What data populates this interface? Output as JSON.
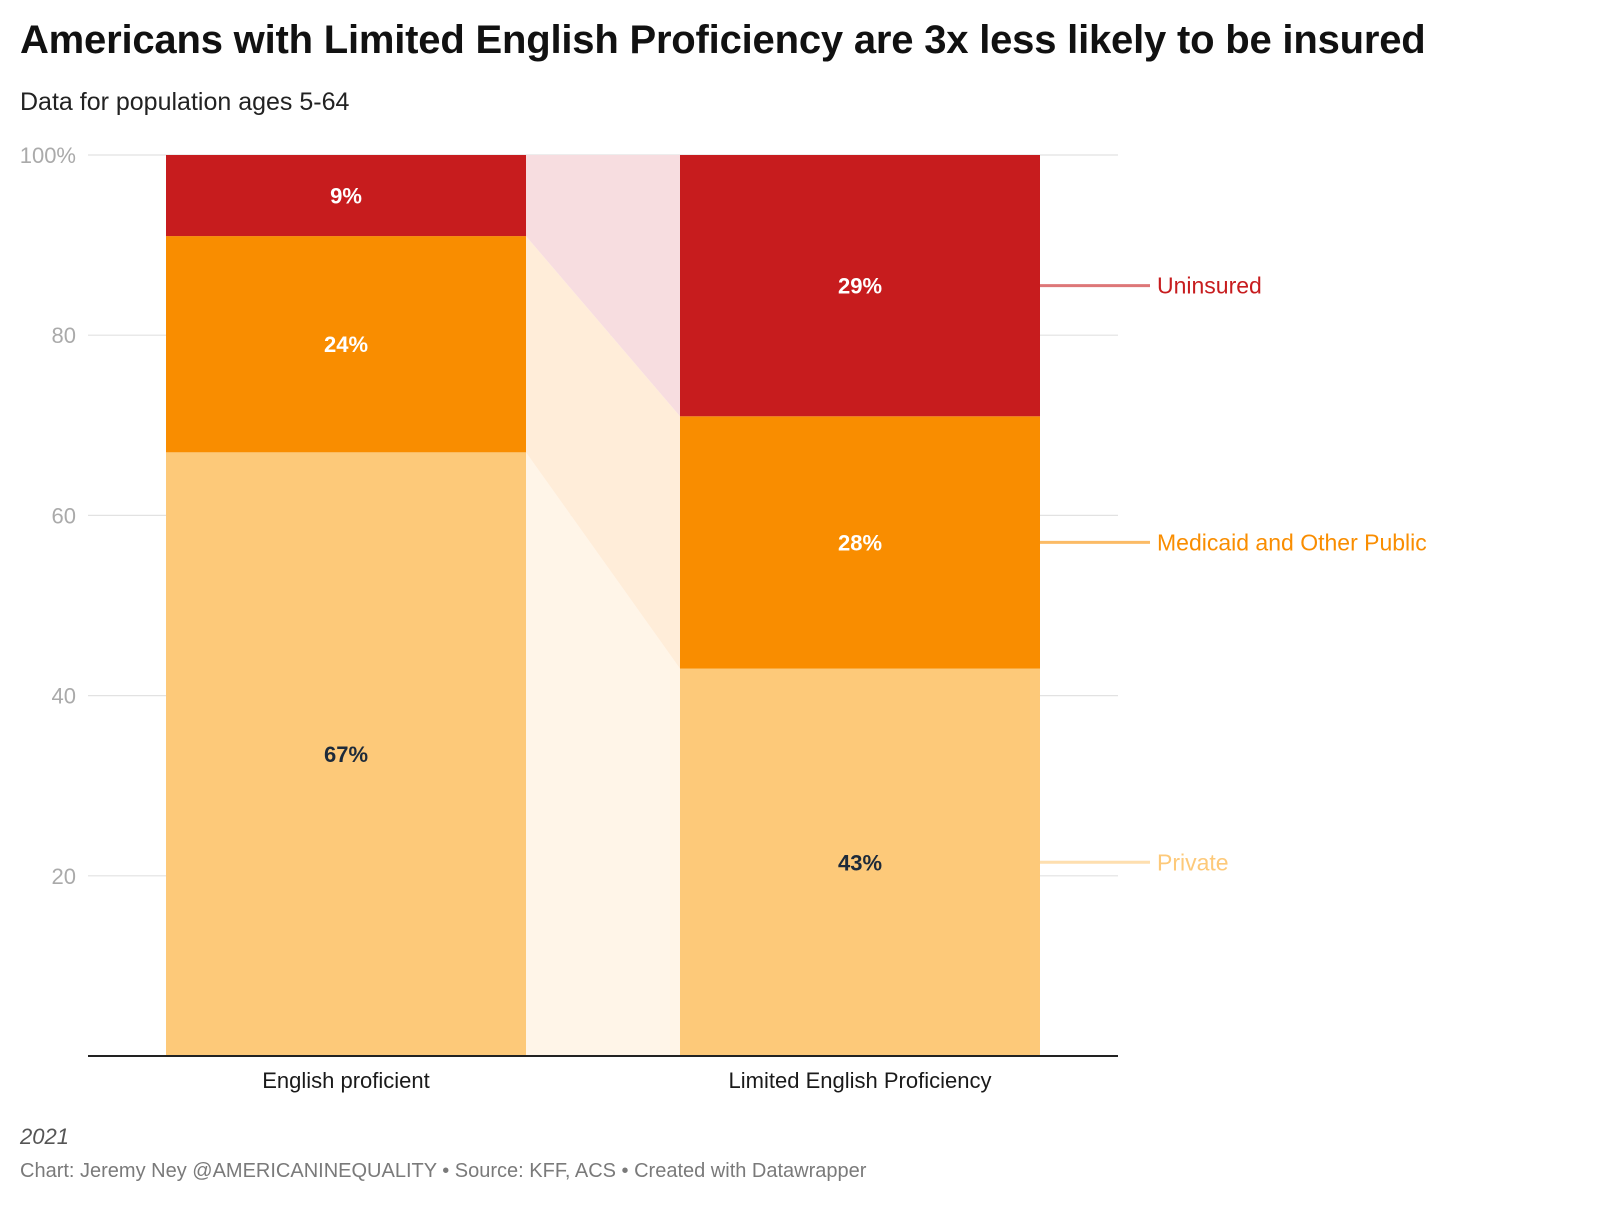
{
  "header": {
    "title": "Americans with Limited English Proficiency are 3x less likely to be insured",
    "subtitle": "Data for population ages 5-64"
  },
  "chart_data": {
    "type": "bar",
    "stacked": true,
    "categories": [
      "English proficient",
      "Limited English Proficiency"
    ],
    "series": [
      {
        "name": "Private",
        "values": [
          67,
          43
        ],
        "labels": [
          "67%",
          "43%"
        ],
        "color": "#fdc979",
        "label_color": "#1d2a3a",
        "connector_color": "#fff5e8"
      },
      {
        "name": "Medicaid and Other Public",
        "values": [
          24,
          28
        ],
        "labels": [
          "24%",
          "28%"
        ],
        "color": "#f98d00",
        "label_color": "#ffffff",
        "connector_color": "#ffedd9"
      },
      {
        "name": "Uninsured",
        "values": [
          9,
          29
        ],
        "labels": [
          "9%",
          "29%"
        ],
        "color": "#c71c1e",
        "label_color": "#ffffff",
        "connector_color": "#f7dde0"
      }
    ],
    "legend_colors": {
      "Uninsured": "#c71c1e",
      "Medicaid and Other Public": "#f98d00",
      "Private": "#fdc979"
    },
    "y_ticks": [
      {
        "value": 100,
        "label": "100%"
      },
      {
        "value": 80,
        "label": "80"
      },
      {
        "value": 60,
        "label": "60"
      },
      {
        "value": 40,
        "label": "40"
      },
      {
        "value": 20,
        "label": "20"
      }
    ],
    "ylim": [
      0,
      100
    ],
    "grid": true,
    "legend": "right, direct labels",
    "title": "Americans with Limited English Proficiency are 3x less likely to be insured",
    "subtitle": "Data for population ages 5-64",
    "xlabel": "",
    "ylabel": ""
  },
  "notes": {
    "year": "2021",
    "footer": "Chart: Jeremy Ney @AMERICANINEQUALITY • Source: KFF, ACS • Created with Datawrapper"
  }
}
